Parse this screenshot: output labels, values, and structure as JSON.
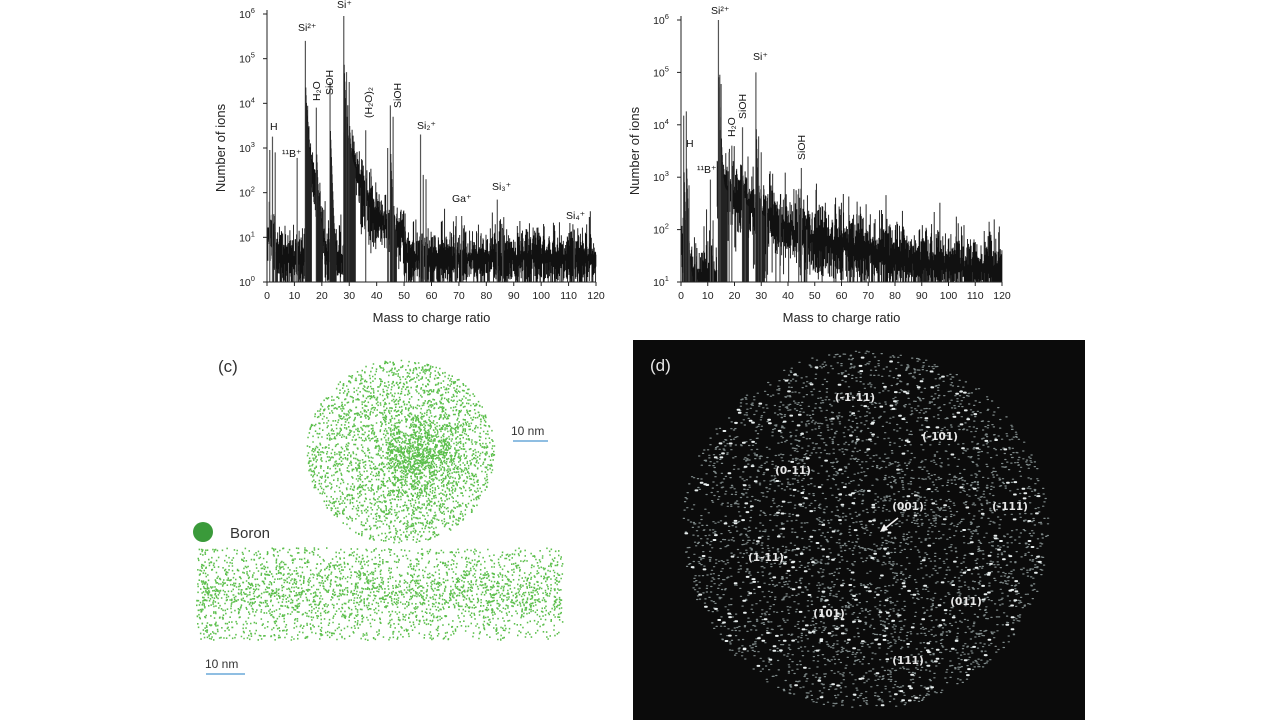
{
  "chart_data": [
    {
      "type": "line",
      "xlabel": "Mass to charge ratio",
      "ylabel": "Number of ions",
      "xlim": [
        0,
        120
      ],
      "ylim": [
        1,
        1000000
      ],
      "yscale": "log",
      "xticks": [
        "0",
        "10",
        "20",
        "30",
        "40",
        "50",
        "60",
        "70",
        "80",
        "90",
        "100",
        "110",
        "120"
      ],
      "yticks": [
        {
          "base": "10",
          "exp": "0"
        },
        {
          "base": "10",
          "exp": "1"
        },
        {
          "base": "10",
          "exp": "2"
        },
        {
          "base": "10",
          "exp": "3"
        },
        {
          "base": "10",
          "exp": "4"
        },
        {
          "base": "10",
          "exp": "5"
        },
        {
          "base": "10",
          "exp": "6"
        }
      ],
      "background_level": "2-5 counts",
      "peaks": [
        {
          "mz": 1,
          "counts": 900
        },
        {
          "mz": 2,
          "counts": 1800
        },
        {
          "mz": 3,
          "counts": 800
        },
        {
          "mz": 11,
          "counts": 600
        },
        {
          "mz": 14,
          "counts": 250000
        },
        {
          "mz": 18,
          "counts": 8000
        },
        {
          "mz": 23,
          "counts": 30000
        },
        {
          "mz": 28,
          "counts": 900000
        },
        {
          "mz": 29,
          "counts": 50000
        },
        {
          "mz": 30,
          "counts": 30000
        },
        {
          "mz": 36,
          "counts": 2500
        },
        {
          "mz": 44,
          "counts": 1000
        },
        {
          "mz": 45,
          "counts": 9000
        },
        {
          "mz": 46,
          "counts": 5000
        },
        {
          "mz": 56,
          "counts": 2000
        },
        {
          "mz": 57,
          "counts": 250
        },
        {
          "mz": 58,
          "counts": 200
        },
        {
          "mz": 69,
          "counts": 30
        },
        {
          "mz": 71,
          "counts": 30
        },
        {
          "mz": 84,
          "counts": 70
        },
        {
          "mz": 86,
          "counts": 15
        },
        {
          "mz": 112,
          "counts": 15
        }
      ],
      "annotations": [
        "H",
        "¹¹B⁺",
        "Si²⁺",
        "H₂O",
        "SiOH",
        "Si⁺",
        "(H₂O)₂",
        "SiOH",
        "Si₂⁺",
        "Ga⁺",
        "Si₃⁺",
        "Si₄⁺"
      ]
    },
    {
      "type": "line",
      "xlabel": "Mass to charge ratio",
      "ylabel": "Number of ions",
      "xlim": [
        0,
        120
      ],
      "ylim": [
        10,
        1000000
      ],
      "yscale": "log",
      "xticks": [
        "0",
        "10",
        "20",
        "30",
        "40",
        "50",
        "60",
        "70",
        "80",
        "90",
        "100",
        "110",
        "120"
      ],
      "yticks": [
        {
          "base": "10",
          "exp": "1"
        },
        {
          "base": "10",
          "exp": "2"
        },
        {
          "base": "10",
          "exp": "3"
        },
        {
          "base": "10",
          "exp": "4"
        },
        {
          "base": "10",
          "exp": "5"
        },
        {
          "base": "10",
          "exp": "6"
        }
      ],
      "peaks": [
        {
          "mz": 1,
          "counts": 15000
        },
        {
          "mz": 2,
          "counts": 18000
        },
        {
          "mz": 3,
          "counts": 700
        },
        {
          "mz": 5.5,
          "counts": 55
        },
        {
          "mz": 11,
          "counts": 900
        },
        {
          "mz": 12,
          "counts": 150
        },
        {
          "mz": 14,
          "counts": 1000000
        },
        {
          "mz": 14.5,
          "counts": 90000
        },
        {
          "mz": 15,
          "counts": 60000
        },
        {
          "mz": 18,
          "counts": 3000
        },
        {
          "mz": 19,
          "counts": 4000
        },
        {
          "mz": 23,
          "counts": 9000
        },
        {
          "mz": 24,
          "counts": 400
        },
        {
          "mz": 28,
          "counts": 100000
        },
        {
          "mz": 29,
          "counts": 6000
        },
        {
          "mz": 30,
          "counts": 3000
        },
        {
          "mz": 32,
          "counts": 350
        },
        {
          "mz": 37,
          "counts": 300
        },
        {
          "mz": 44,
          "counts": 600
        },
        {
          "mz": 45,
          "counts": 1500
        },
        {
          "mz": 47,
          "counts": 100
        }
      ],
      "annotations": [
        "H",
        "¹¹B⁺",
        "Si²⁺",
        "H₂O",
        "SiOH",
        "Si⁺",
        "SiOH"
      ]
    }
  ],
  "panel_c": {
    "label": "(c)",
    "scale_bar_top": "10 nm",
    "scale_bar_bottom": "10 nm",
    "legend": {
      "label": "Boron",
      "color": "#3a9a3a"
    },
    "dot_color": "#5cbf4c"
  },
  "panel_d": {
    "label": "(d)",
    "poles": [
      "(-1-11)",
      "(-101)",
      "(0-11)",
      "(001)",
      "(-111)",
      "(1-11)",
      "(101)",
      "(011)",
      "(111)"
    ]
  }
}
